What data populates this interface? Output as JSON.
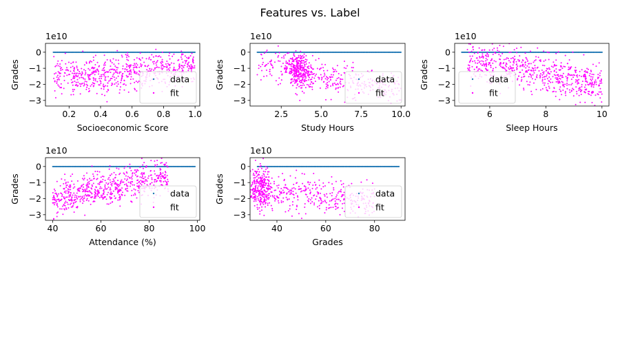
{
  "figure": {
    "suptitle": "Features vs. Label",
    "colors": {
      "data": "#1f77b4",
      "fit": "#ff00ff",
      "axes": "#000000",
      "legend_frame": "#cccccc"
    }
  },
  "chart_data": [
    {
      "type": "scatter",
      "xlabel": "Socioeconomic Score",
      "ylabel": "Grades",
      "offset_text": "1e10",
      "xlim": [
        0.05,
        1.03
      ],
      "ylim": [
        -3.35,
        0.55
      ],
      "x_ticks": [
        0.2,
        0.4,
        0.6,
        0.8,
        1.0
      ],
      "x_tick_labels": [
        "0.2",
        "0.4",
        "0.6",
        "0.8",
        "1.0"
      ],
      "y_ticks": [
        0,
        -1,
        -2,
        -3
      ],
      "y_tick_labels": [
        "0",
        "−1",
        "−2",
        "−3"
      ],
      "legend": {
        "placement": "lower right",
        "entries": [
          "data",
          "fit"
        ]
      },
      "series": [
        {
          "name": "data",
          "x_range": [
            0.1,
            1.0
          ],
          "y_value": 0.0
        },
        {
          "name": "fit",
          "x_range": [
            0.1,
            1.0
          ],
          "y_trend": [
            [
              0.1,
              -1.5
            ],
            [
              0.4,
              -1.45
            ],
            [
              0.7,
              -1.1
            ],
            [
              1.0,
              -0.8
            ]
          ],
          "y_spread": 0.55
        }
      ]
    },
    {
      "type": "scatter",
      "xlabel": "Study Hours",
      "ylabel": "Grades",
      "offset_text": "1e10",
      "xlim": [
        0.55,
        10.25
      ],
      "ylim": [
        -3.35,
        0.55
      ],
      "x_ticks": [
        2.5,
        5.0,
        7.5,
        10.0
      ],
      "x_tick_labels": [
        "2.5",
        "5.0",
        "7.5",
        "10.0"
      ],
      "y_ticks": [
        0,
        -1,
        -2,
        -3
      ],
      "y_tick_labels": [
        "0",
        "−1",
        "−2",
        "−3"
      ],
      "legend": {
        "placement": "lower right",
        "entries": [
          "data",
          "fit"
        ]
      },
      "series": [
        {
          "name": "data",
          "x_range": [
            1.0,
            10.0
          ],
          "y_value": 0.0
        },
        {
          "name": "fit",
          "x_range": [
            1.0,
            10.0
          ],
          "x_cluster": 3.6,
          "y_trend": [
            [
              1.0,
              -0.6
            ],
            [
              3.6,
              -1.1
            ],
            [
              6.0,
              -1.8
            ],
            [
              10.0,
              -2.3
            ]
          ],
          "y_spread": 0.5
        }
      ]
    },
    {
      "type": "scatter",
      "xlabel": "Sleep Hours",
      "ylabel": "Grades",
      "offset_text": "1e10",
      "xlim": [
        4.75,
        10.25
      ],
      "ylim": [
        -3.35,
        0.55
      ],
      "x_ticks": [
        6,
        8,
        10
      ],
      "x_tick_labels": [
        "6",
        "8",
        "10"
      ],
      "y_ticks": [
        0,
        -1,
        -2,
        -3
      ],
      "y_tick_labels": [
        "0",
        "−1",
        "−2",
        "−3"
      ],
      "legend": {
        "placement": "lower left",
        "entries": [
          "data",
          "fit"
        ]
      },
      "series": [
        {
          "name": "data",
          "x_range": [
            5.0,
            10.0
          ],
          "y_value": 0.0
        },
        {
          "name": "fit",
          "x_range": [
            5.2,
            10.0
          ],
          "y_trend": [
            [
              5.2,
              -0.6
            ],
            [
              7.0,
              -1.0
            ],
            [
              8.5,
              -1.5
            ],
            [
              10.0,
              -2.0
            ]
          ],
          "y_spread": 0.6
        }
      ]
    },
    {
      "type": "scatter",
      "xlabel": "Attendance (%)",
      "ylabel": "Grades",
      "offset_text": "1e10",
      "xlim": [
        37.0,
        101.0
      ],
      "ylim": [
        -3.35,
        0.55
      ],
      "x_ticks": [
        40,
        60,
        80,
        100
      ],
      "x_tick_labels": [
        "40",
        "60",
        "80",
        "100"
      ],
      "y_ticks": [
        0,
        -1,
        -2,
        -3
      ],
      "y_tick_labels": [
        "0",
        "−1",
        "−2",
        "−3"
      ],
      "legend": {
        "placement": "lower right",
        "entries": [
          "data",
          "fit"
        ]
      },
      "series": [
        {
          "name": "data",
          "x_range": [
            40,
            99
          ],
          "y_value": 0.0
        },
        {
          "name": "fit",
          "x_range": [
            40,
            88
          ],
          "y_trend": [
            [
              40,
              -2.0
            ],
            [
              60,
              -1.5
            ],
            [
              75,
              -1.0
            ],
            [
              88,
              -0.6
            ]
          ],
          "y_spread": 0.55
        }
      ]
    },
    {
      "type": "scatter",
      "xlabel": "Grades",
      "ylabel": "Grades",
      "offset_text": "1e10",
      "xlim": [
        29.0,
        92.5
      ],
      "ylim": [
        -3.35,
        0.55
      ],
      "x_ticks": [
        40,
        60,
        80
      ],
      "x_tick_labels": [
        "40",
        "60",
        "80"
      ],
      "y_ticks": [
        0,
        -1,
        -2,
        -3
      ],
      "y_tick_labels": [
        "0",
        "−1",
        "−2",
        "−3"
      ],
      "legend": {
        "placement": "lower right",
        "entries": [
          "data",
          "fit"
        ]
      },
      "series": [
        {
          "name": "data",
          "x_range": [
            32,
            90
          ],
          "y_value": 0.0
        },
        {
          "name": "fit",
          "x_range": [
            32,
            80
          ],
          "x_cluster": 33,
          "y_trend": [
            [
              32,
              -1.3
            ],
            [
              45,
              -1.6
            ],
            [
              60,
              -1.8
            ],
            [
              80,
              -2.2
            ]
          ],
          "y_spread": 0.6
        }
      ]
    }
  ]
}
